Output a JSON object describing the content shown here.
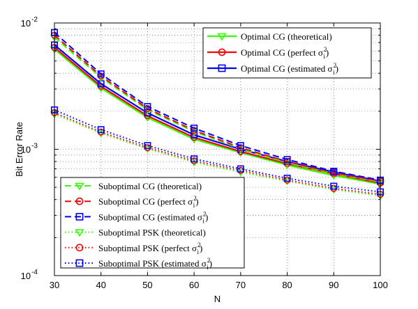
{
  "chart_data": {
    "type": "line",
    "title": "",
    "xlabel": "N",
    "ylabel": "Bit Error Rate",
    "x": [
      30,
      40,
      50,
      60,
      70,
      80,
      90,
      100
    ],
    "xlim": [
      30,
      100
    ],
    "ylim": [
      0.0001,
      0.01
    ],
    "yscale": "log",
    "grid": true,
    "x_ticks": [
      "30",
      "40",
      "50",
      "60",
      "70",
      "80",
      "90",
      "100"
    ],
    "y_ticks": [
      {
        "base": "10",
        "exp": "-4"
      },
      {
        "base": "10",
        "exp": "-3"
      },
      {
        "base": "10",
        "exp": "-2"
      }
    ],
    "legends": [
      {
        "placement": "top-right",
        "entries": [
          {
            "text": "Optimal CG (theoretical)",
            "sup": ""
          },
          {
            "text": "Optimal CG (perfect σ",
            "sub": "i",
            "sup": "2",
            "tail": ")"
          },
          {
            "text": "Optimal CG (estimated σ",
            "sub": "i",
            "sup": "2",
            "tail": ")"
          }
        ]
      },
      {
        "placement": "bottom-left",
        "entries": [
          {
            "text": "Suboptimal CG (theoretical)"
          },
          {
            "text": "Suboptimal CG (perfect σ",
            "sub": "i",
            "sup": "2",
            "tail": ")"
          },
          {
            "text": "Suboptimal CG (estimated σ",
            "sub": "i",
            "sup": "2",
            "tail": ")"
          },
          {
            "text": "Suboptimal PSK (theoretical)"
          },
          {
            "text": "Suboptimal PSK (perfect σ",
            "sub": "i",
            "sup": "2",
            "tail": ")"
          },
          {
            "text": "Suboptimal PSK (estimated σ",
            "sub": "i",
            "sup": "2",
            "tail": ")"
          }
        ]
      }
    ],
    "series": [
      {
        "name": "Optimal CG (theoretical)",
        "color": "#33ff00",
        "style": "solid",
        "marker": "triangle-down",
        "values": [
          0.0062,
          0.00305,
          0.00178,
          0.0012,
          0.00094,
          0.00075,
          0.00062,
          0.00053
        ]
      },
      {
        "name": "Optimal CG (perfect σi²)",
        "color": "#ff0000",
        "style": "solid",
        "marker": "circle",
        "values": [
          0.0064,
          0.00315,
          0.00184,
          0.00124,
          0.00096,
          0.00077,
          0.00064,
          0.00054
        ]
      },
      {
        "name": "Optimal CG (estimated σi²)",
        "color": "#0000ff",
        "style": "solid",
        "marker": "square",
        "values": [
          0.0067,
          0.0033,
          0.00194,
          0.0013,
          0.001,
          0.0008,
          0.00066,
          0.00056
        ]
      },
      {
        "name": "Suboptimal CG (theoretical)",
        "color": "#33ff00",
        "style": "dashed",
        "marker": "triangle-down",
        "values": [
          0.0077,
          0.0037,
          0.00205,
          0.00138,
          0.00101,
          0.00078,
          0.00064,
          0.00055
        ]
      },
      {
        "name": "Suboptimal CG (perfect σi²)",
        "color": "#ff0000",
        "style": "dashed",
        "marker": "circle",
        "values": [
          0.008,
          0.0038,
          0.0021,
          0.00141,
          0.00103,
          0.0008,
          0.00065,
          0.00056
        ]
      },
      {
        "name": "Suboptimal CG (estimated σi²)",
        "color": "#0000ff",
        "style": "dashed",
        "marker": "square",
        "values": [
          0.0084,
          0.00395,
          0.00218,
          0.00147,
          0.00107,
          0.00083,
          0.00067,
          0.00057
        ]
      },
      {
        "name": "Suboptimal PSK (theoretical)",
        "color": "#33ff00",
        "style": "dotted",
        "marker": "triangle-down",
        "values": [
          0.0019,
          0.00134,
          0.00101,
          0.00079,
          0.00066,
          0.00056,
          0.00048,
          0.00043
        ]
      },
      {
        "name": "Suboptimal PSK (perfect σi²)",
        "color": "#ff0000",
        "style": "dotted",
        "marker": "circle",
        "values": [
          0.00195,
          0.00137,
          0.00103,
          0.00081,
          0.00068,
          0.00057,
          0.00049,
          0.00044
        ]
      },
      {
        "name": "Suboptimal PSK (estimated σi²)",
        "color": "#0000ff",
        "style": "dotted",
        "marker": "square",
        "values": [
          0.00205,
          0.00143,
          0.00107,
          0.00084,
          0.0007,
          0.00059,
          0.00051,
          0.00046
        ]
      }
    ]
  }
}
